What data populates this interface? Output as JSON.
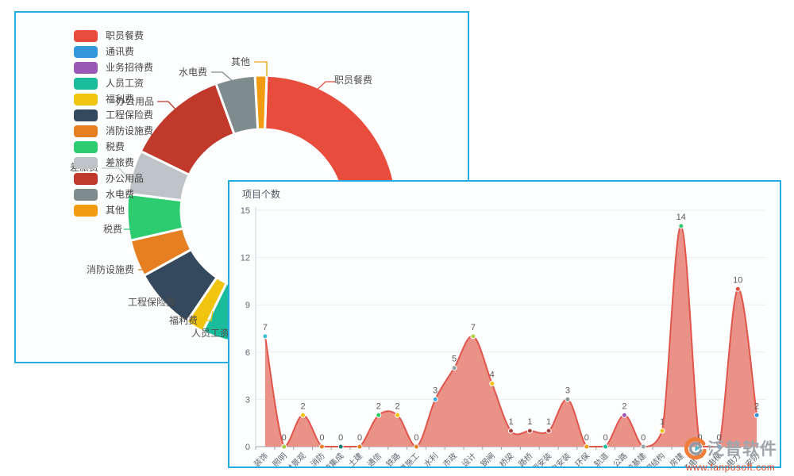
{
  "colors": {
    "panel_border": "#25ace3",
    "grid": "#e9edf3",
    "x_axis": "#9aa3ab",
    "y_axis": "#ccd3d9",
    "tick_text": "#5c6770",
    "callout_text": "#4d4d4d"
  },
  "pie_panel": {
    "legend": [
      {
        "label": "职员餐费",
        "color": "#e74c3c"
      },
      {
        "label": "通讯费",
        "color": "#3498db"
      },
      {
        "label": "业务招待费",
        "color": "#9b59b6"
      },
      {
        "label": "人员工资",
        "color": "#1abc9c"
      },
      {
        "label": "福利费",
        "color": "#f1c40f"
      },
      {
        "label": "工程保险费",
        "color": "#34495e"
      },
      {
        "label": "消防设施费",
        "color": "#e67e22"
      },
      {
        "label": "税费",
        "color": "#2ecc71"
      },
      {
        "label": "差旅费",
        "color": "#bdc3c7"
      },
      {
        "label": "办公用品",
        "color": "#c0392b"
      },
      {
        "label": "水电费",
        "color": "#7f8c8d"
      },
      {
        "label": "其他",
        "color": "#f39c12"
      }
    ]
  },
  "chart_data": [
    {
      "type": "pie",
      "subtype": "donut",
      "legend_position": "left",
      "segments": [
        {
          "label": "职员餐费",
          "color": "#e74c3c",
          "start_deg": 2,
          "end_deg": 112,
          "est_share_pct": 30.6
        },
        {
          "label": "通讯费",
          "color": "#3498db",
          "start_deg": 112,
          "end_deg": 150,
          "est_share_pct": 10.6
        },
        {
          "label": "业务招待费",
          "color": "#9b59b6",
          "start_deg": 150,
          "end_deg": 170,
          "est_share_pct": 5.6
        },
        {
          "label": "人员工资",
          "color": "#1abc9c",
          "start_deg": 170,
          "end_deg": 206,
          "est_share_pct": 10.0
        },
        {
          "label": "福利费",
          "color": "#f1c40f",
          "start_deg": 206,
          "end_deg": 214,
          "est_share_pct": 2.2
        },
        {
          "label": "工程保险费",
          "color": "#34495e",
          "start_deg": 214,
          "end_deg": 241,
          "est_share_pct": 7.5
        },
        {
          "label": "消防设施费",
          "color": "#e67e22",
          "start_deg": 241,
          "end_deg": 257,
          "est_share_pct": 4.4
        },
        {
          "label": "税费",
          "color": "#2ecc71",
          "start_deg": 257,
          "end_deg": 277,
          "est_share_pct": 5.6
        },
        {
          "label": "差旅费",
          "color": "#bdc3c7",
          "start_deg": 277,
          "end_deg": 296,
          "est_share_pct": 5.3
        },
        {
          "label": "办公用品",
          "color": "#c0392b",
          "start_deg": 296,
          "end_deg": 340,
          "est_share_pct": 12.2
        },
        {
          "label": "水电费",
          "color": "#7f8c8d",
          "start_deg": 340,
          "end_deg": 357,
          "est_share_pct": 4.7
        },
        {
          "label": "其他",
          "color": "#f39c12",
          "start_deg": 357,
          "end_deg": 362,
          "est_share_pct": 1.4
        }
      ],
      "callout_labels": [
        "其他",
        "职员餐费",
        "水电费",
        "办公用品",
        "差旅费",
        "税费",
        "消防设施费",
        "工程保险费",
        "福利费",
        "人员工资"
      ]
    },
    {
      "type": "area",
      "title": "项目个数",
      "categories": [
        "装饰",
        "照明",
        "园林景观",
        "消防",
        "系统集成",
        "土建",
        "通信",
        "铁路",
        "隧道施工",
        "水利",
        "市政",
        "设计",
        "钢闸",
        "桥梁",
        "路桥",
        "空调安装",
        "机电安装",
        "环保",
        "轨道",
        "公路",
        "高校基建",
        "钢结构",
        "房建",
        "电子电气",
        "电梯",
        "电力",
        "安防"
      ],
      "values": [
        7,
        0,
        2,
        0,
        0,
        0,
        2,
        2,
        0,
        3,
        5,
        7,
        4,
        1,
        1,
        1,
        3,
        0,
        0,
        2,
        0,
        1,
        14,
        0,
        0,
        10,
        2
      ],
      "ylim": [
        0,
        15
      ],
      "yticks": [
        0,
        3,
        6,
        9,
        12,
        15
      ],
      "grid": true,
      "smooth": true,
      "line_color": "#df564d",
      "fill_color": "#ea8a7f",
      "fill_opacity": 0.93,
      "label_color": "#5a5a5a",
      "x_label_rotate_deg": 45,
      "point_colors": [
        "#3bbfce",
        "#a9c93f",
        "#f1c40f",
        "#e67e22",
        "#17807a",
        "#e67e22",
        "#2ecc71",
        "#f1c40f",
        "#e67e22",
        "#41a7e0",
        "#95a5a6",
        "#b3d14c",
        "#f1c40f",
        "#a94442",
        "#a94442",
        "#a94442",
        "#8a9597",
        "#f39c12",
        "#1abc9c",
        "#9b59b6",
        "#95a5a6",
        "#f1c40f",
        "#2ecc71",
        "#95a5a6",
        "#3498db",
        "#e74c3c",
        "#3498db"
      ]
    }
  ],
  "watermark": {
    "brand": "泛普软件",
    "url": "www.fanpusoft.com",
    "brand_color": "#9fa5ab",
    "url_color": "#e54a2b",
    "logo_orange": "#ef7e3b",
    "logo_teal": "#4fb8c9",
    "logo_gray": "#8f9aa3"
  }
}
